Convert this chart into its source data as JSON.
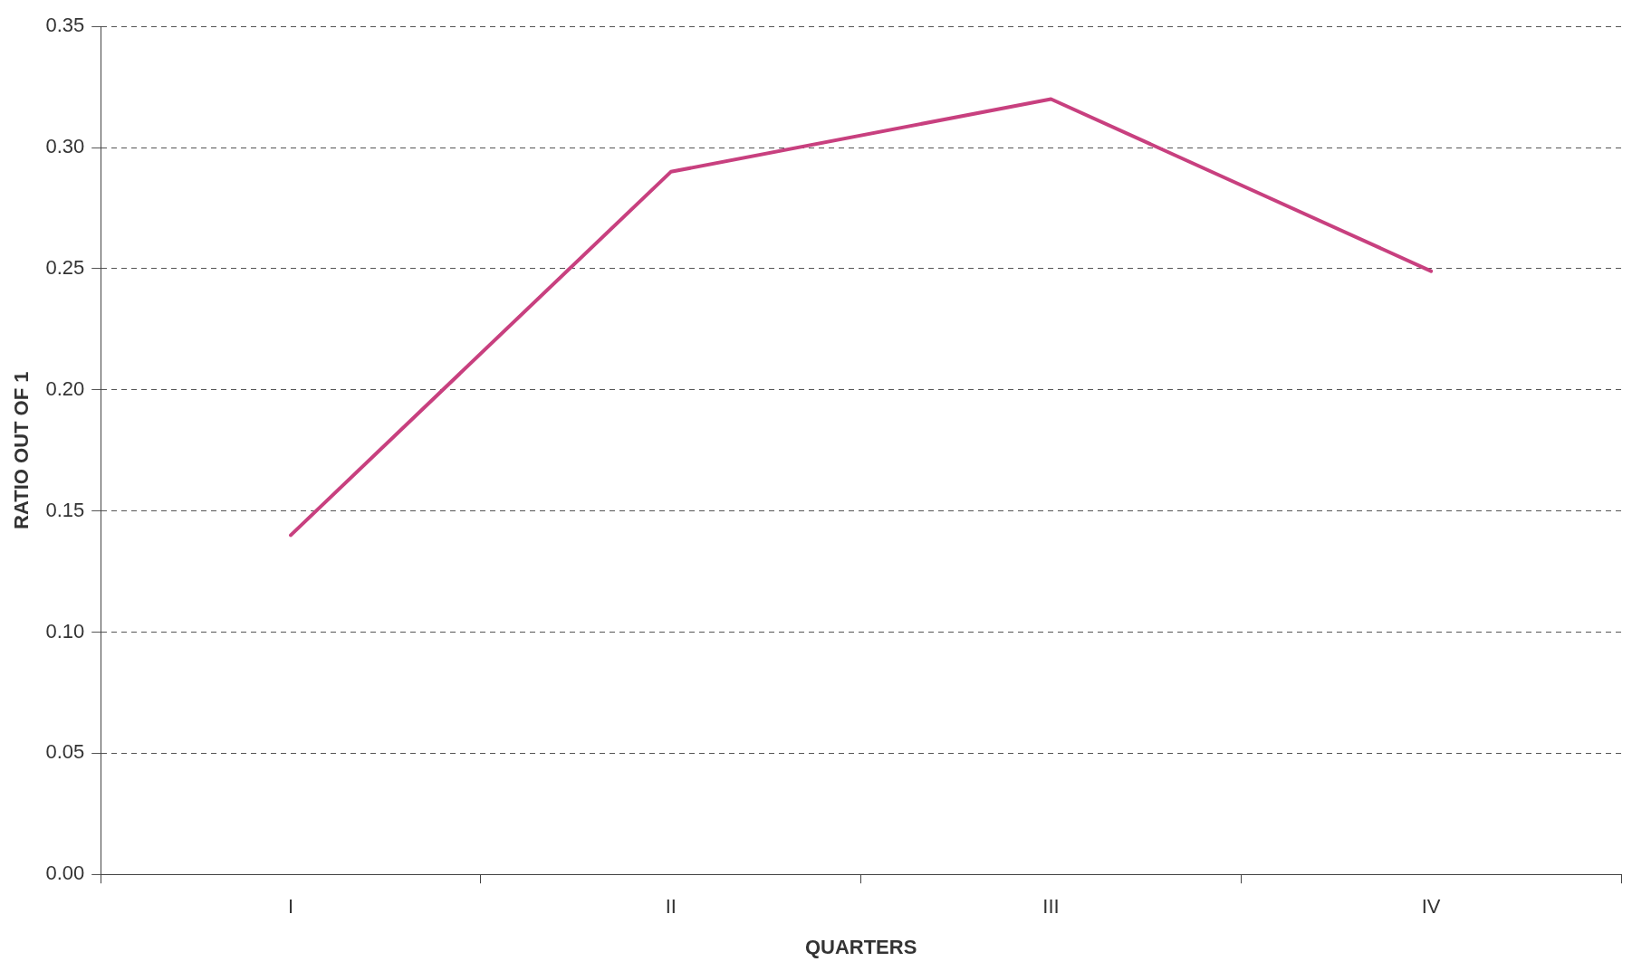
{
  "chart_data": {
    "type": "line",
    "xlabel": "QUARTERS",
    "ylabel": "RATIO OUT OF 1",
    "categories": [
      "I",
      "II",
      "III",
      "IV"
    ],
    "series": [
      {
        "color": "#c8407f",
        "values": [
          0.14,
          0.29,
          0.32,
          0.249
        ]
      }
    ],
    "ylim": [
      0,
      0.35
    ],
    "yticks": [
      {
        "value": 0,
        "label": "0.00"
      },
      {
        "value": 0.05,
        "label": "0.05"
      },
      {
        "value": 0.1,
        "label": "0.10"
      },
      {
        "value": 0.15,
        "label": "0.15"
      },
      {
        "value": 0.2,
        "label": "0.20"
      },
      {
        "value": 0.25,
        "label": "0.25"
      },
      {
        "value": 0.3,
        "label": "0.30"
      },
      {
        "value": 0.35,
        "label": "0.35"
      }
    ],
    "grid": "y",
    "legend": false,
    "marker": "none",
    "line_style": "solid"
  }
}
